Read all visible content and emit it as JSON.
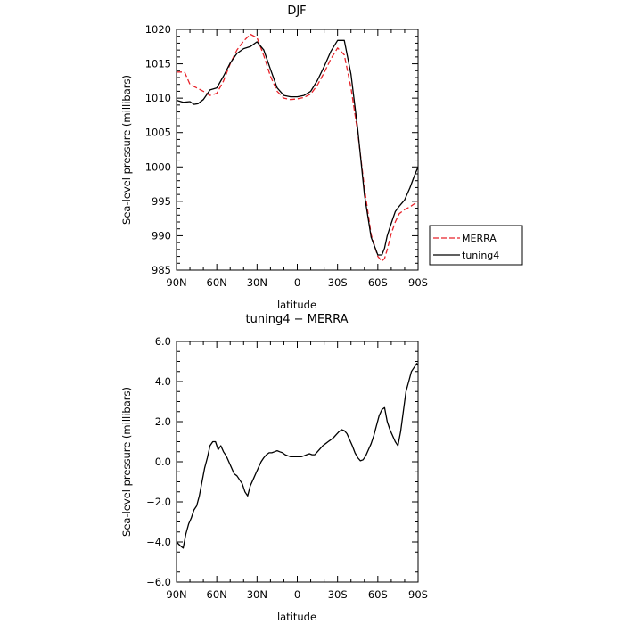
{
  "chart_data": [
    {
      "type": "line",
      "title": "DJF",
      "xlabel": "latitude",
      "ylabel": "Sea-level pressure (millibars)",
      "xlim": [
        90,
        -90
      ],
      "ylim": [
        985,
        1020
      ],
      "x_ticks": [
        90,
        60,
        30,
        0,
        -30,
        -60,
        -90
      ],
      "x_tick_labels": [
        "90N",
        "60N",
        "30N",
        "0",
        "30S",
        "60S",
        "90S"
      ],
      "y_ticks": [
        985,
        990,
        995,
        1000,
        1005,
        1010,
        1015,
        1020
      ],
      "y_tick_labels": [
        "985",
        "990",
        "995",
        "1000",
        "1005",
        "1010",
        "1015",
        "1020"
      ],
      "grid": false,
      "legend_position": "right",
      "series": [
        {
          "name": "MERRA",
          "color": "#e8232a",
          "dash": "dashed",
          "x": [
            90,
            84,
            80,
            75,
            70,
            65,
            60,
            55,
            50,
            45,
            40,
            35,
            30,
            25,
            20,
            15,
            10,
            5,
            0,
            -5,
            -10,
            -15,
            -20,
            -25,
            -30,
            -35,
            -40,
            -45,
            -50,
            -55,
            -60,
            -63,
            -65,
            -67,
            -70,
            -73,
            -76,
            -80,
            -84,
            -87,
            -90
          ],
          "y": [
            1013.8,
            1013.8,
            1012,
            1011.5,
            1011,
            1010.4,
            1010.7,
            1012.5,
            1015,
            1017,
            1018.3,
            1019.3,
            1018.8,
            1016.2,
            1013.2,
            1011,
            1010,
            1009.8,
            1009.9,
            1010.1,
            1010.6,
            1011.9,
            1013.7,
            1015.7,
            1017.3,
            1016.3,
            1011.5,
            1005,
            997,
            990.2,
            987,
            986.3,
            986.7,
            988,
            990.3,
            992,
            993.2,
            993.8,
            994.2,
            994.6,
            995
          ]
        },
        {
          "name": "tuning4",
          "color": "#000000",
          "dash": "solid",
          "x": [
            90,
            85,
            80,
            77,
            74,
            70,
            65,
            60,
            55,
            50,
            45,
            40,
            35,
            30,
            25,
            20,
            15,
            10,
            5,
            0,
            -5,
            -10,
            -15,
            -20,
            -25,
            -30,
            -35,
            -40,
            -45,
            -50,
            -55,
            -60,
            -63,
            -65,
            -67,
            -70,
            -73,
            -76,
            -80,
            -84,
            -87,
            -90
          ],
          "y": [
            1009.7,
            1009.4,
            1009.5,
            1009.1,
            1009.2,
            1009.8,
            1011.2,
            1011.5,
            1013.2,
            1015.1,
            1016.5,
            1017.2,
            1017.5,
            1018.2,
            1017,
            1014.2,
            1011.5,
            1010.4,
            1010.2,
            1010.2,
            1010.4,
            1011,
            1012.6,
            1014.6,
            1016.8,
            1018.4,
            1018.4,
            1013.5,
            1005.5,
            996,
            989.8,
            987.2,
            987.2,
            988.2,
            990,
            991.8,
            993.5,
            994.3,
            995.2,
            997,
            998.6,
            1000
          ]
        }
      ]
    },
    {
      "type": "line",
      "title": "tuning4 − MERRA",
      "xlabel": "latitude",
      "ylabel": "Sea-level pressure (millibars)",
      "xlim": [
        90,
        -90
      ],
      "ylim": [
        -6,
        6
      ],
      "x_ticks": [
        90,
        60,
        30,
        0,
        -30,
        -60,
        -90
      ],
      "x_tick_labels": [
        "90N",
        "60N",
        "30N",
        "0",
        "30S",
        "60S",
        "90S"
      ],
      "y_ticks": [
        -6,
        -4,
        -2,
        0,
        2,
        4,
        6
      ],
      "y_tick_labels": [
        "−6.0",
        "−4.0",
        "−2.0",
        "0.0",
        "2.0",
        "4.0",
        "6.0"
      ],
      "grid": false,
      "series": [
        {
          "color": "#000000",
          "dash": "solid",
          "x": [
            90,
            87,
            85,
            83,
            81,
            79,
            77,
            75,
            73,
            71,
            69,
            67,
            65,
            63,
            61,
            59,
            57,
            55,
            53,
            51,
            49,
            47,
            45,
            43,
            41,
            39,
            37,
            35,
            33,
            31,
            29,
            27,
            25,
            23,
            21,
            19,
            17,
            15,
            13,
            11,
            9,
            7,
            5,
            3,
            1,
            -1,
            -3,
            -5,
            -7,
            -9,
            -11,
            -13,
            -15,
            -17,
            -19,
            -21,
            -23,
            -25,
            -27,
            -29,
            -31,
            -33,
            -35,
            -37,
            -39,
            -41,
            -43,
            -45,
            -47,
            -49,
            -51,
            -53,
            -55,
            -57,
            -59,
            -61,
            -63,
            -65,
            -67,
            -69,
            -71,
            -73,
            -75,
            -77,
            -79,
            -81,
            -83,
            -85,
            -87,
            -89,
            -90
          ],
          "y": [
            -4.0,
            -4.2,
            -4.3,
            -3.6,
            -3.1,
            -2.8,
            -2.4,
            -2.2,
            -1.7,
            -1.0,
            -0.3,
            0.2,
            0.8,
            1.0,
            1.0,
            0.6,
            0.8,
            0.5,
            0.3,
            0.0,
            -0.3,
            -0.6,
            -0.7,
            -0.9,
            -1.1,
            -1.5,
            -1.7,
            -1.2,
            -0.9,
            -0.6,
            -0.3,
            0.0,
            0.2,
            0.35,
            0.45,
            0.45,
            0.5,
            0.55,
            0.5,
            0.45,
            0.35,
            0.3,
            0.25,
            0.25,
            0.25,
            0.25,
            0.25,
            0.3,
            0.35,
            0.4,
            0.35,
            0.35,
            0.5,
            0.65,
            0.8,
            0.9,
            1.0,
            1.1,
            1.2,
            1.35,
            1.5,
            1.6,
            1.55,
            1.4,
            1.1,
            0.8,
            0.45,
            0.2,
            0.05,
            0.1,
            0.3,
            0.6,
            0.9,
            1.3,
            1.8,
            2.3,
            2.6,
            2.7,
            2.0,
            1.6,
            1.3,
            1.0,
            0.8,
            1.5,
            2.5,
            3.5,
            4.0,
            4.5,
            4.7,
            4.9,
            4.8
          ]
        }
      ]
    }
  ]
}
